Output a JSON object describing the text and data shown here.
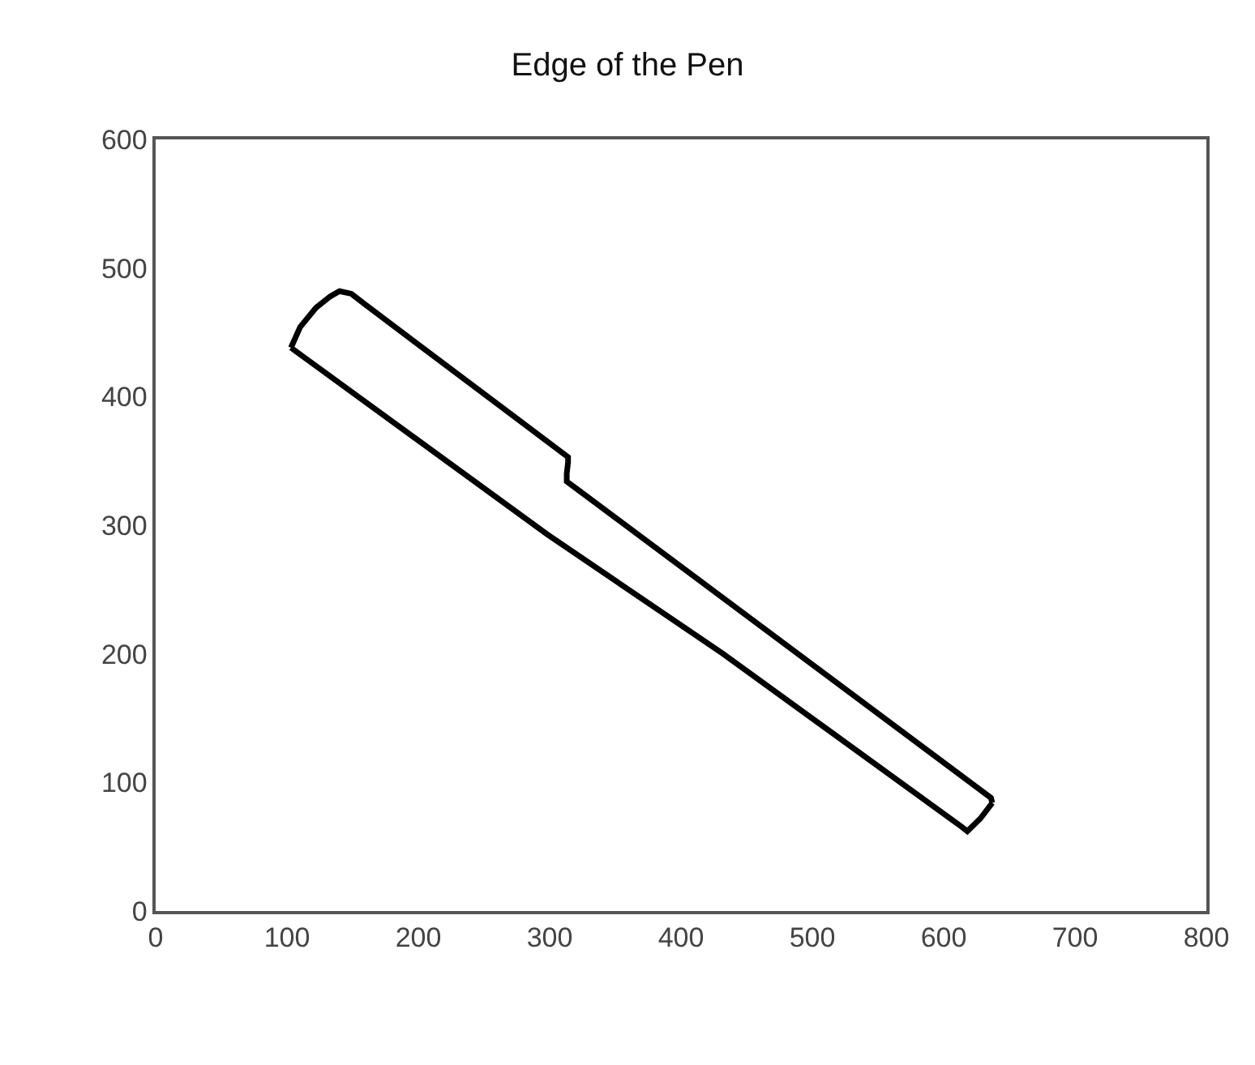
{
  "chart_data": {
    "type": "line",
    "title": "Edge of the Pen",
    "series": [
      {
        "color": "#000000",
        "x": [
          103,
          110,
          122,
          133,
          140,
          149,
          159,
          314,
          314,
          313,
          313,
          321,
          636,
          637
        ],
        "values": [
          438,
          454,
          469,
          478,
          482,
          480,
          472,
          353,
          349,
          340,
          334,
          328,
          88,
          84
        ]
      },
      {
        "color": "#000000",
        "x": [
          103,
          298,
          432,
          613,
          618,
          628,
          637
        ],
        "values": [
          438,
          293,
          200,
          66,
          62,
          72,
          84
        ]
      }
    ],
    "xlim": [
      0,
      800
    ],
    "xticks": [
      0,
      100,
      200,
      300,
      400,
      500,
      600,
      700,
      800
    ],
    "ylim": [
      0,
      600
    ],
    "yticks": [
      0,
      100,
      200,
      300,
      400,
      500,
      600
    ],
    "grid": false,
    "marker": "none",
    "line_style": "solid"
  }
}
